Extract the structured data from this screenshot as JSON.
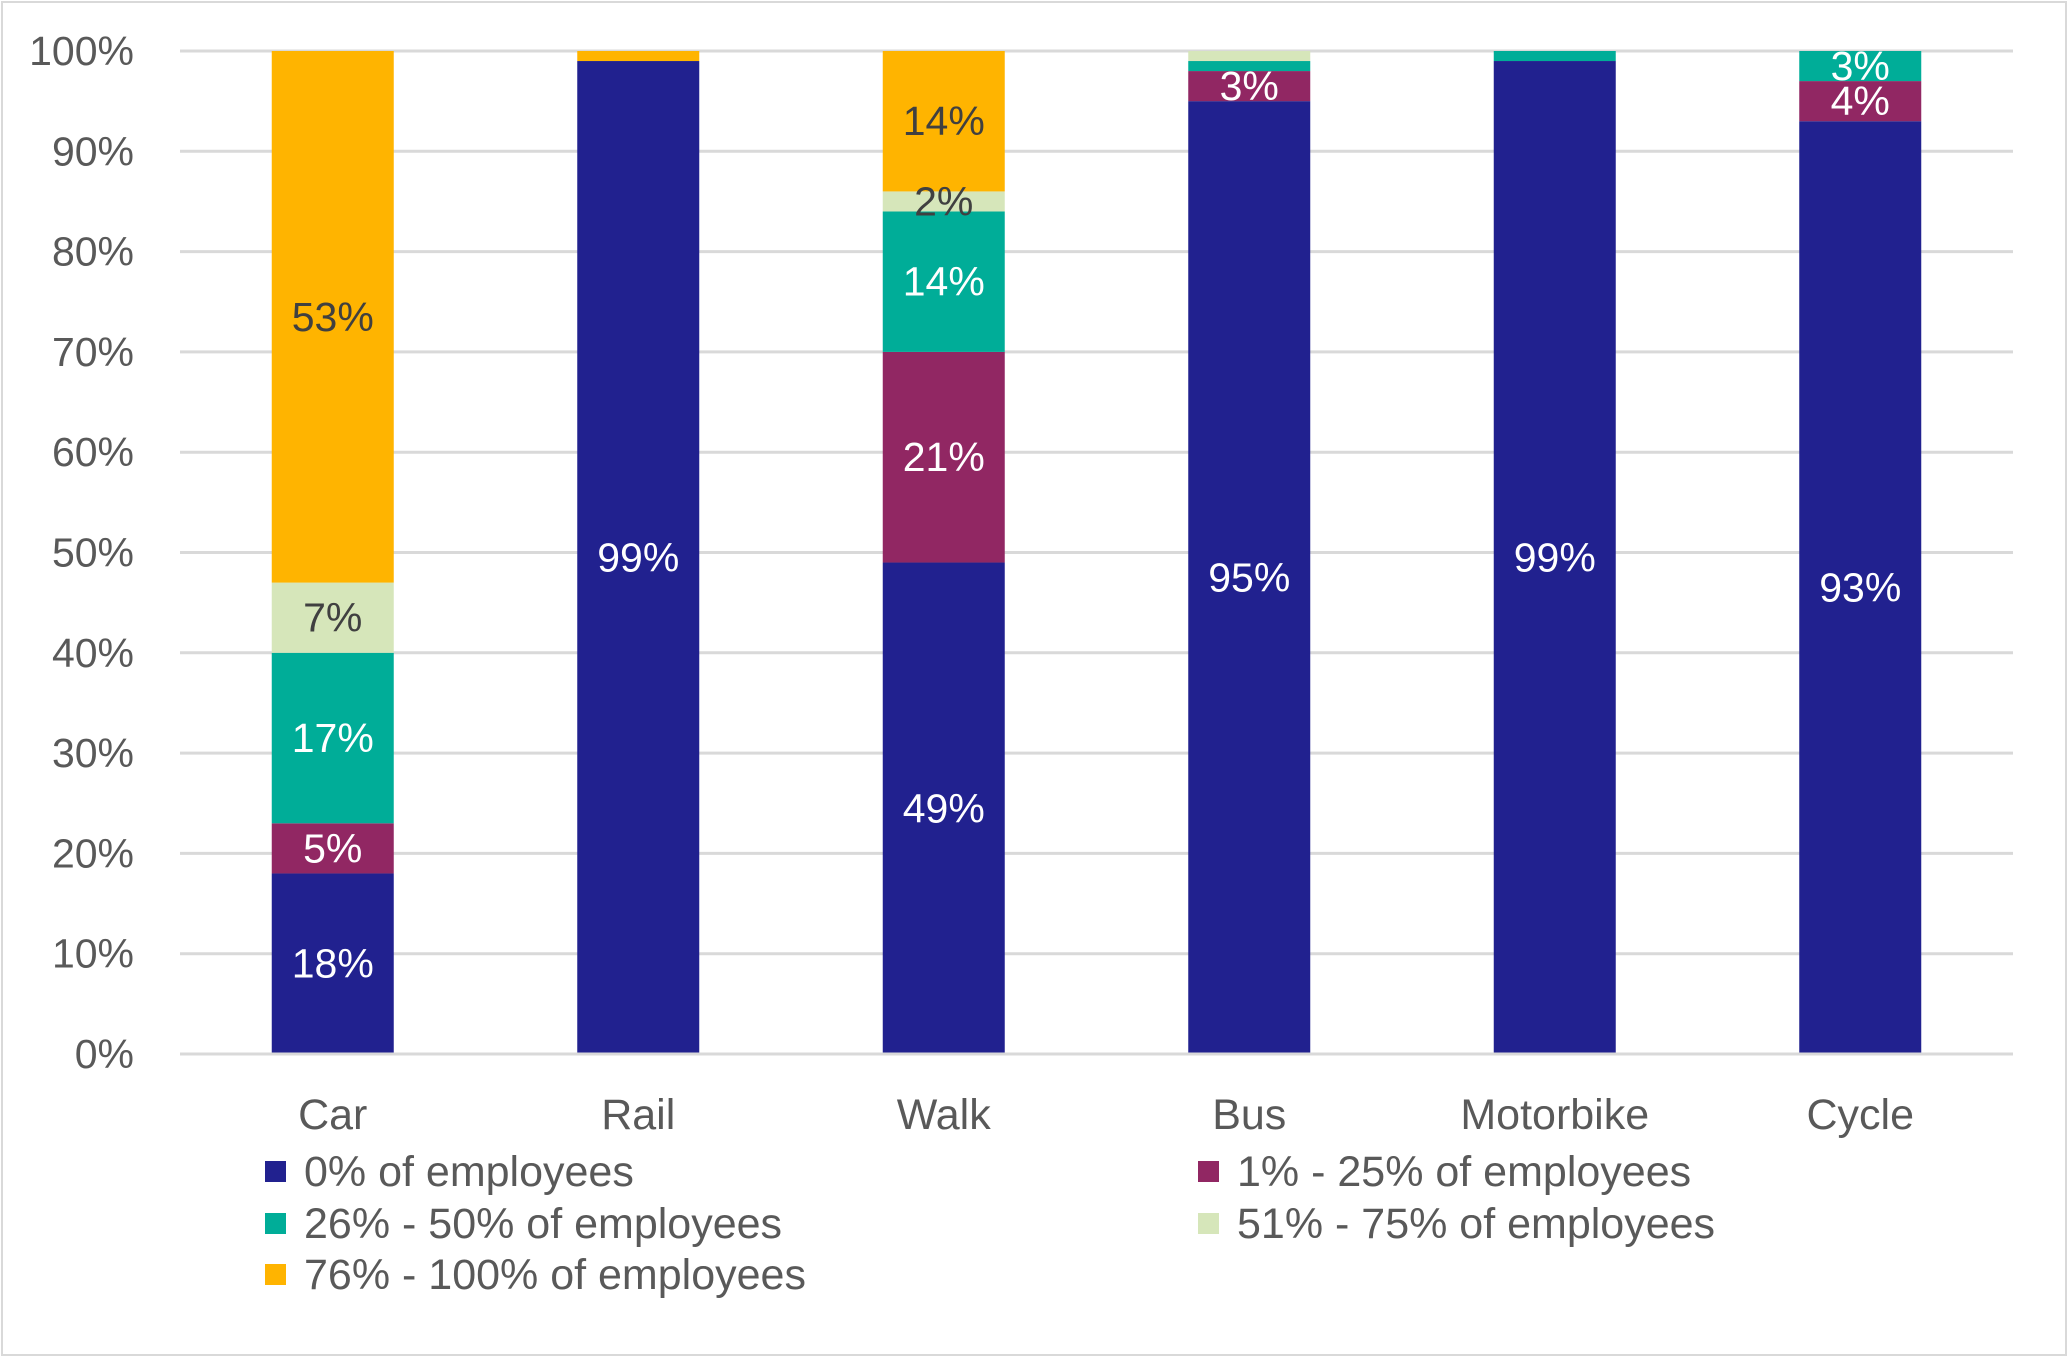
{
  "chart_data": {
    "type": "bar",
    "stacked": "percent",
    "title": "",
    "xlabel": "",
    "ylabel": "",
    "ylim": [
      0,
      100
    ],
    "yticks": [
      "0%",
      "10%",
      "20%",
      "30%",
      "40%",
      "50%",
      "60%",
      "70%",
      "80%",
      "90%",
      "100%"
    ],
    "grid": true,
    "legend_position": "bottom",
    "categories": [
      "Car",
      "Rail",
      "Walk",
      "Bus",
      "Motorbike",
      "Cycle"
    ],
    "series": [
      {
        "name": "0% of employees",
        "color": "#21218F",
        "label_color": "#FFFFFF",
        "values": [
          18,
          99,
          49,
          95,
          99,
          93
        ],
        "labels": [
          "18%",
          "99%",
          "49%",
          "95%",
          "99%",
          "93%"
        ]
      },
      {
        "name": "1% - 25% of employees",
        "color": "#912763",
        "label_color": "#FFFFFF",
        "values": [
          5,
          0,
          21,
          3,
          0,
          4
        ],
        "labels": [
          "5%",
          "",
          "21%",
          "3%",
          "",
          "4%"
        ]
      },
      {
        "name": "26% - 50% of employees",
        "color": "#00AD98",
        "label_color": "#FFFFFF",
        "values": [
          17,
          0,
          14,
          1,
          1,
          3
        ],
        "labels": [
          "17%",
          "",
          "14%",
          "",
          "",
          "3%"
        ]
      },
      {
        "name": "51% - 75% of employees",
        "color": "#D6E6BA",
        "label_color": "#404040",
        "values": [
          7,
          0,
          2,
          1,
          0,
          0
        ],
        "labels": [
          "7%",
          "",
          "2%",
          "",
          "",
          ""
        ]
      },
      {
        "name": "76% - 100% of employees",
        "color": "#FFB400",
        "label_color": "#404040",
        "values": [
          53,
          1,
          14,
          0,
          0,
          0
        ],
        "labels": [
          "53%",
          "",
          "14%",
          "",
          "",
          ""
        ]
      }
    ]
  }
}
